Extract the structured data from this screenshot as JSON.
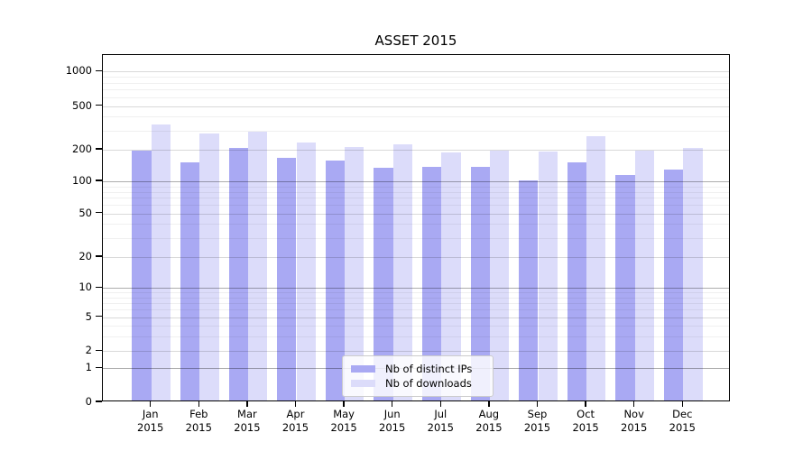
{
  "chart_data": {
    "type": "bar",
    "title": "ASSET 2015",
    "categories": [
      "Jan",
      "Feb",
      "Mar",
      "Apr",
      "May",
      "Jun",
      "Jul",
      "Aug",
      "Sep",
      "Oct",
      "Nov",
      "Dec"
    ],
    "category_year_label": "2015",
    "series": [
      {
        "name": "Nb of distinct IPs",
        "color": "#a9a9f3",
        "values": [
          190,
          146,
          201,
          161,
          153,
          130,
          132,
          133,
          98,
          145,
          111,
          124
        ]
      },
      {
        "name": "Nb of downloads",
        "color": "#dcdcfa",
        "values": [
          330,
          270,
          282,
          225,
          203,
          216,
          182,
          190,
          186,
          255,
          188,
          202
        ]
      }
    ],
    "xlabel": "",
    "ylabel": "",
    "yscale": "symlog",
    "ylim": [
      0,
      1450
    ],
    "y_tick_labels": [
      "0",
      "1",
      "2",
      "5",
      "10",
      "20",
      "50",
      "100",
      "200",
      "500",
      "1000"
    ],
    "y_tick_pct": {
      "0": 100,
      "1": 90.2,
      "2": 85.3,
      "5": 75.5,
      "10": 67.1,
      "20": 58.2,
      "50": 45.6,
      "100": 36.4,
      "200": 27.3,
      "500": 14.7,
      "1000": 4.75
    },
    "y_minor_ticks": [
      3,
      4,
      6,
      7,
      8,
      9,
      30,
      40,
      60,
      70,
      80,
      90,
      300,
      400,
      600,
      700,
      800,
      900
    ],
    "grid": true,
    "legend_position": "lower center"
  }
}
